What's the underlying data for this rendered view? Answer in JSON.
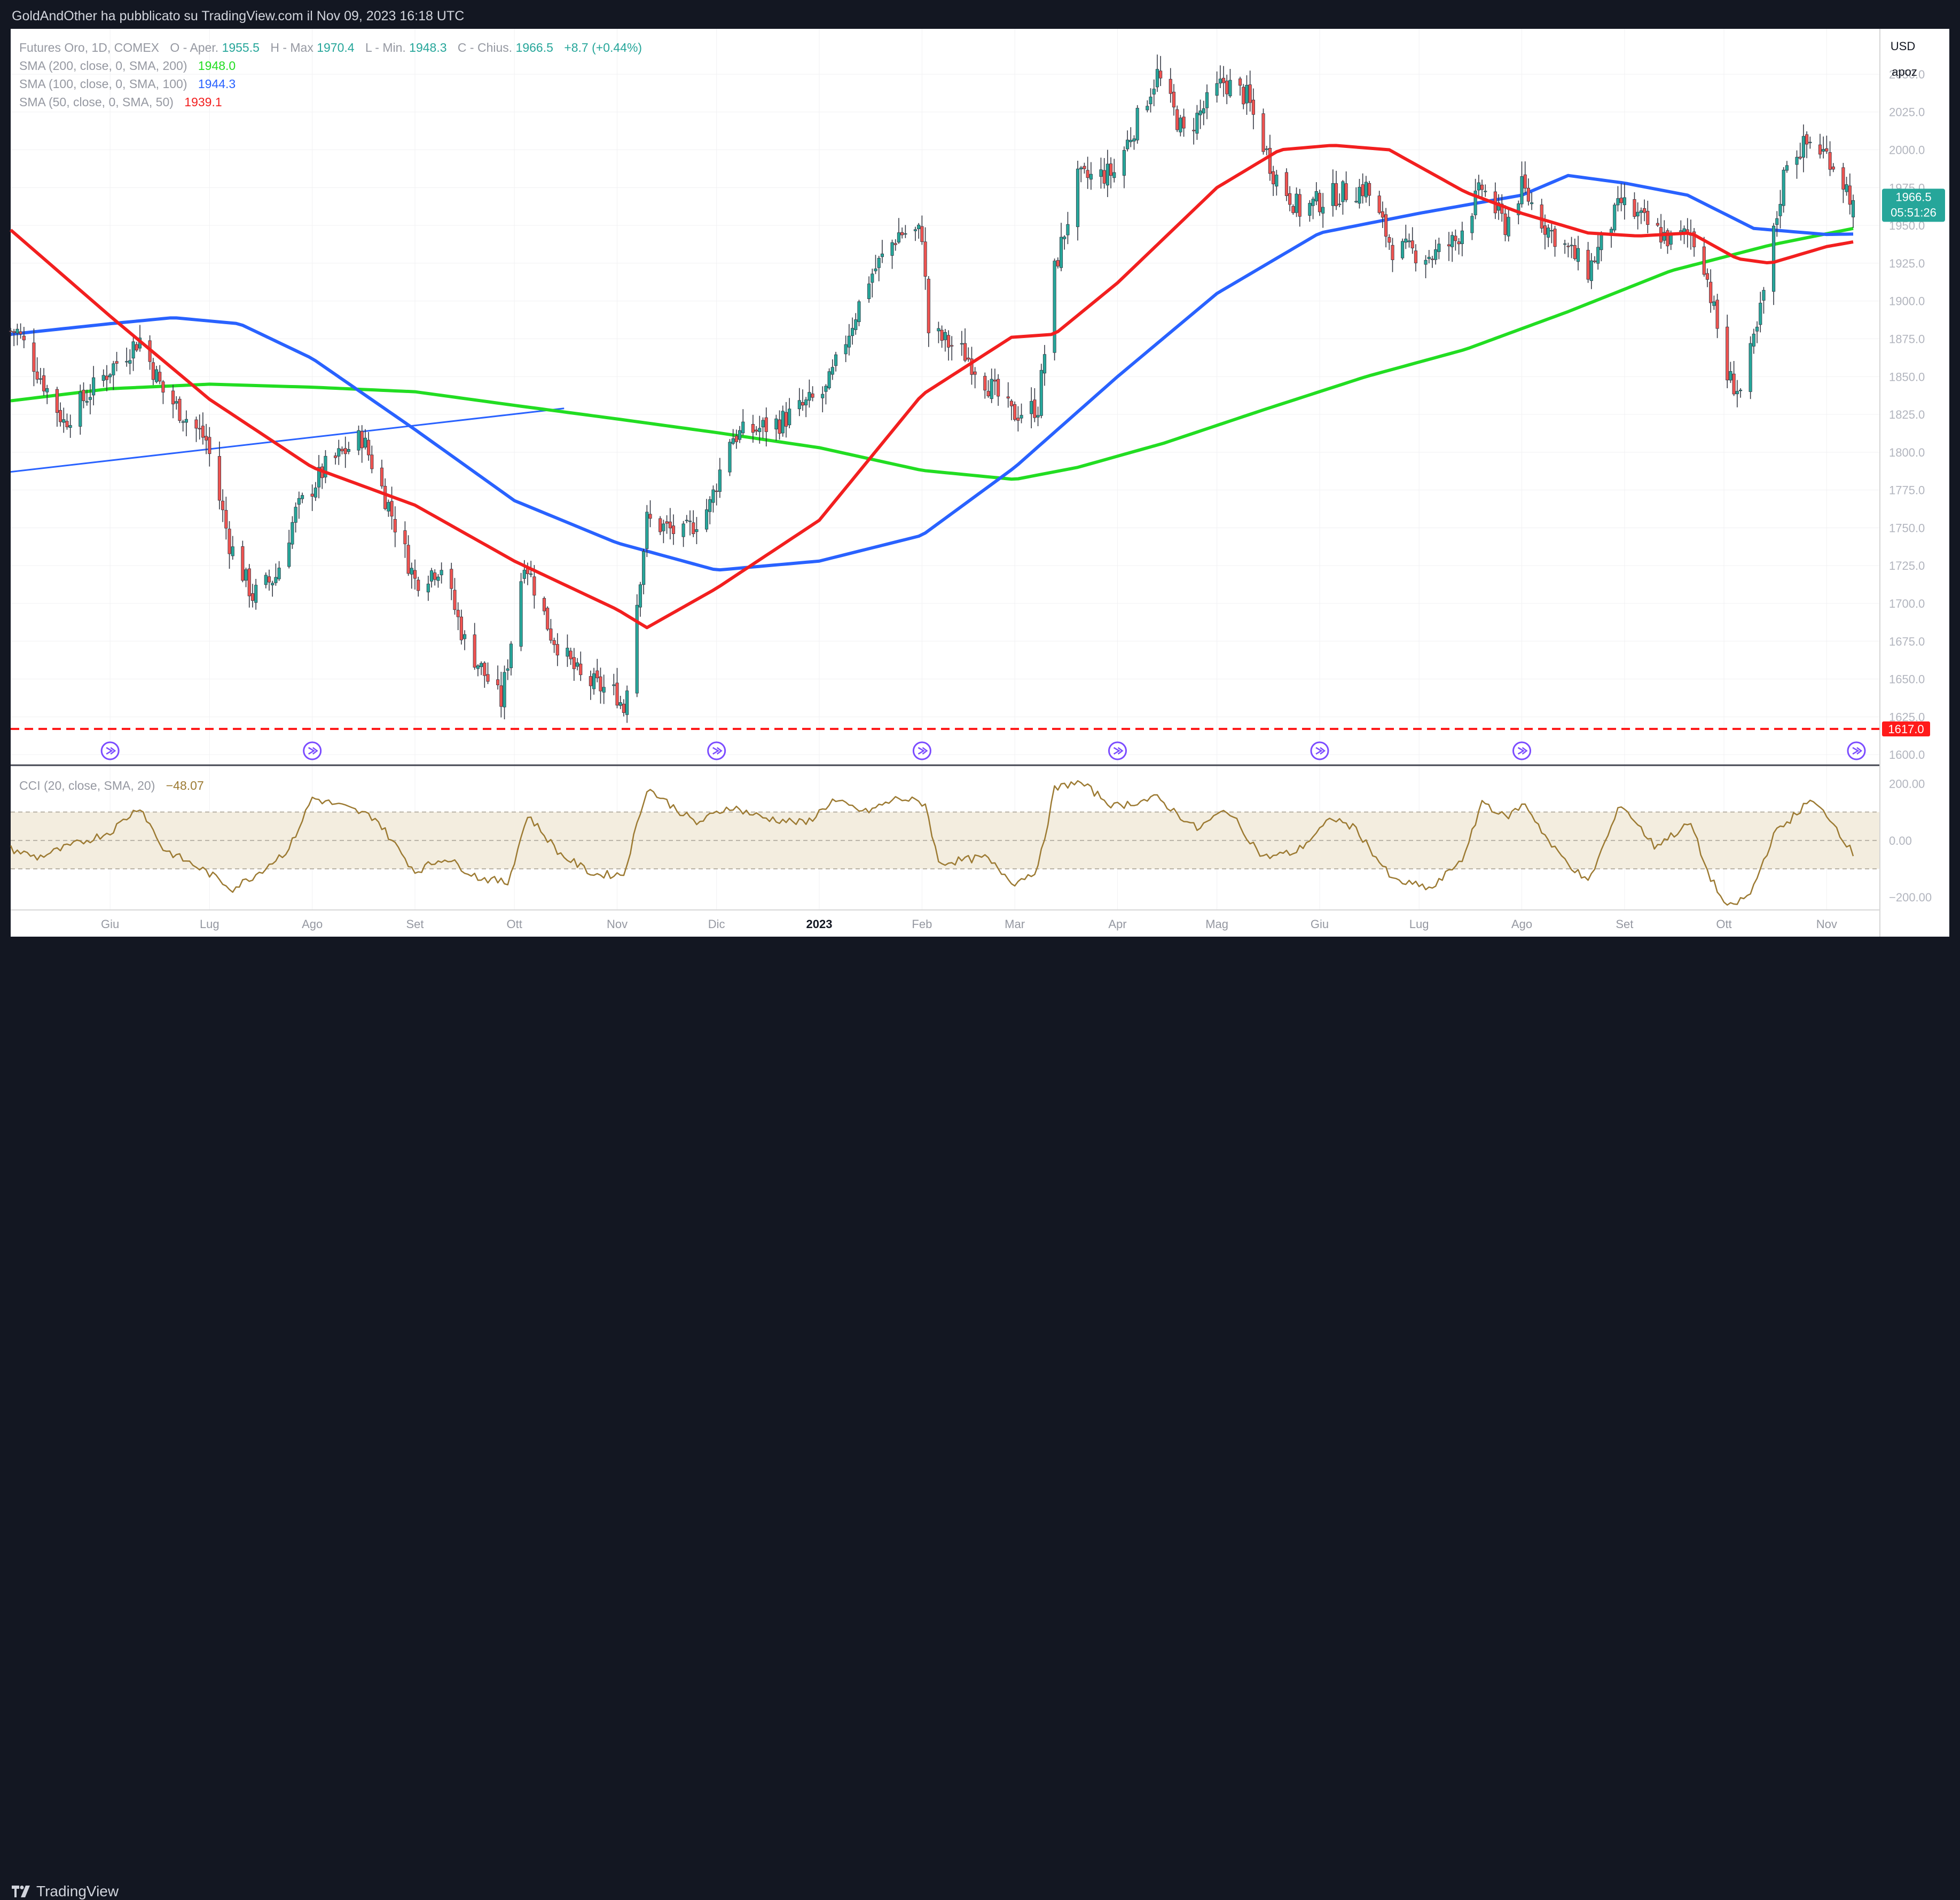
{
  "header": {
    "published_text": "GoldAndOther ha pubblicato su TradingView.com il Nov 09, 2023 16:18 UTC"
  },
  "footer": {
    "brand": "TradingView"
  },
  "legend": {
    "instrument": "Futures Oro, 1D, COMEX",
    "o_label": "O - Aper.",
    "o_value": "1955.5",
    "h_label": "H - Max",
    "h_value": "1970.4",
    "l_label": "L - Min.",
    "l_value": "1948.3",
    "c_label": "C - Chius.",
    "c_value": "1966.5",
    "change": "+8.7 (+0.44%)",
    "sma200_label": "SMA (200, close, 0, SMA, 200)",
    "sma200_value": "1948.0",
    "sma100_label": "SMA (100, close, 0, SMA, 100)",
    "sma100_value": "1944.3",
    "sma50_label": "SMA (50, close, 0, SMA, 50)",
    "sma50_value": "1939.1",
    "cci_label": "CCI (20, close, SMA, 20)",
    "cci_value": "−48.07"
  },
  "scale": {
    "currency": "USD",
    "mode": "apoz"
  },
  "price_badge": {
    "price": "1966.5",
    "countdown": "05:51:26"
  },
  "support_badge": "1617.0",
  "colors": {
    "up": "#26a69a",
    "down": "#ef5350",
    "sma200": "#22dd22",
    "sma100": "#2962ff",
    "sma50": "#f21f1f",
    "cci_line": "#9c7a32",
    "cci_band": "#f3eddf",
    "trendline": "#2962ff",
    "support": "#ff1a1a",
    "event_icon": "#7b4cff"
  },
  "chart_data": [
    {
      "type": "candlestick",
      "title": "Futures Oro, 1D, COMEX",
      "ylabel": "USD",
      "ylim": [
        1593,
        2080
      ],
      "y_ticks": [
        1600,
        1625,
        1650,
        1675,
        1700,
        1725,
        1750,
        1775,
        1800,
        1825,
        1850,
        1875,
        1900,
        1925,
        1950,
        1975,
        2000,
        2025,
        2050
      ],
      "y_tick_labels": [
        "1600.0",
        "1625.0",
        "1650.0",
        "1675.0",
        "1700.0",
        "1725.0",
        "1750.0",
        "1775.0",
        "1800.0",
        "1825.0",
        "1850.0",
        "1875.0",
        "1900.0",
        "1925.0",
        "1950.0",
        "1975.0",
        "2000.0",
        "2025.0",
        "2050.0"
      ],
      "x_ticks": [
        "2022-06-01",
        "2022-07-01",
        "2022-08-01",
        "2022-09-01",
        "2022-10-01",
        "2022-11-01",
        "2022-12-01",
        "2023-01-01",
        "2023-02-01",
        "2023-03-01",
        "2023-04-01",
        "2023-05-01",
        "2023-06-01",
        "2023-07-01",
        "2023-08-01",
        "2023-09-01",
        "2023-10-01",
        "2023-11-01"
      ],
      "x_tick_labels": [
        "Giu",
        "Lug",
        "Ago",
        "Set",
        "Ott",
        "Nov",
        "Dic",
        "2023",
        "Feb",
        "Mar",
        "Apr",
        "Mag",
        "Giu",
        "Lug",
        "Ago",
        "Set",
        "Ott",
        "Nov"
      ],
      "x_range": [
        "2022-05-02",
        "2023-11-09"
      ],
      "close_anchors": [
        [
          "2022-05-04",
          1880
        ],
        [
          "2022-05-18",
          1820
        ],
        [
          "2022-06-01",
          1855
        ],
        [
          "2022-06-10",
          1875
        ],
        [
          "2022-06-17",
          1840
        ],
        [
          "2022-06-30",
          1808
        ],
        [
          "2022-07-07",
          1740
        ],
        [
          "2022-07-14",
          1705
        ],
        [
          "2022-07-21",
          1718
        ],
        [
          "2022-07-27",
          1760
        ],
        [
          "2022-08-05",
          1790
        ],
        [
          "2022-08-16",
          1810
        ],
        [
          "2022-08-24",
          1765
        ],
        [
          "2022-09-01",
          1715
        ],
        [
          "2022-09-09",
          1725
        ],
        [
          "2022-09-16",
          1675
        ],
        [
          "2022-09-27",
          1635
        ],
        [
          "2022-10-04",
          1730
        ],
        [
          "2022-10-12",
          1680
        ],
        [
          "2022-10-21",
          1650
        ],
        [
          "2022-11-01",
          1640
        ],
        [
          "2022-11-03",
          1630
        ],
        [
          "2022-11-10",
          1755
        ],
        [
          "2022-11-21",
          1745
        ],
        [
          "2022-11-29",
          1765
        ],
        [
          "2022-12-05",
          1810
        ],
        [
          "2022-12-13",
          1815
        ],
        [
          "2022-12-20",
          1820
        ],
        [
          "2023-01-03",
          1840
        ],
        [
          "2023-01-16",
          1915
        ],
        [
          "2023-01-25",
          1945
        ],
        [
          "2023-02-01",
          1945
        ],
        [
          "2023-02-03",
          1880
        ],
        [
          "2023-02-14",
          1865
        ],
        [
          "2023-02-28",
          1825
        ],
        [
          "2023-03-08",
          1830
        ],
        [
          "2023-03-13",
          1920
        ],
        [
          "2023-03-20",
          1980
        ],
        [
          "2023-03-31",
          1985
        ],
        [
          "2023-04-13",
          2050
        ],
        [
          "2023-04-21",
          2010
        ],
        [
          "2023-05-03",
          2045
        ],
        [
          "2023-05-10",
          2035
        ],
        [
          "2023-05-18",
          1985
        ],
        [
          "2023-05-26",
          1960
        ],
        [
          "2023-06-05",
          1970
        ],
        [
          "2023-06-15",
          1975
        ],
        [
          "2023-06-23",
          1935
        ],
        [
          "2023-07-05",
          1930
        ],
        [
          "2023-07-12",
          1940
        ],
        [
          "2023-07-20",
          1975
        ],
        [
          "2023-07-27",
          1950
        ],
        [
          "2023-08-01",
          1975
        ],
        [
          "2023-08-08",
          1950
        ],
        [
          "2023-08-21",
          1920
        ],
        [
          "2023-08-31",
          1965
        ],
        [
          "2023-09-08",
          1950
        ],
        [
          "2023-09-15",
          1940
        ],
        [
          "2023-09-21",
          1945
        ],
        [
          "2023-09-25",
          1925
        ],
        [
          "2023-10-02",
          1850
        ],
        [
          "2023-10-06",
          1840
        ],
        [
          "2023-10-11",
          1880
        ],
        [
          "2023-10-20",
          1995
        ],
        [
          "2023-10-27",
          2005
        ],
        [
          "2023-11-02",
          1995
        ],
        [
          "2023-11-09",
          1966.5
        ]
      ],
      "sma50": [
        [
          "2022-05-02",
          1947
        ],
        [
          "2022-06-01",
          1890
        ],
        [
          "2022-07-01",
          1835
        ],
        [
          "2022-08-01",
          1790
        ],
        [
          "2022-09-01",
          1765
        ],
        [
          "2022-10-01",
          1728
        ],
        [
          "2022-11-01",
          1696
        ],
        [
          "2022-11-10",
          1684
        ],
        [
          "2022-12-01",
          1710
        ],
        [
          "2023-01-01",
          1755
        ],
        [
          "2023-02-01",
          1838
        ],
        [
          "2023-02-28",
          1876
        ],
        [
          "2023-03-13",
          1878
        ],
        [
          "2023-04-01",
          1912
        ],
        [
          "2023-05-01",
          1975
        ],
        [
          "2023-05-20",
          2000
        ],
        [
          "2023-06-05",
          2003
        ],
        [
          "2023-06-22",
          2000
        ],
        [
          "2023-07-15",
          1972
        ],
        [
          "2023-08-01",
          1958
        ],
        [
          "2023-08-21",
          1945
        ],
        [
          "2023-09-05",
          1943
        ],
        [
          "2023-09-21",
          1945
        ],
        [
          "2023-10-05",
          1928
        ],
        [
          "2023-10-15",
          1925
        ],
        [
          "2023-11-01",
          1936
        ],
        [
          "2023-11-09",
          1939.1
        ]
      ],
      "sma100": [
        [
          "2022-05-02",
          1878
        ],
        [
          "2022-06-01",
          1885
        ],
        [
          "2022-06-20",
          1889
        ],
        [
          "2022-07-10",
          1885
        ],
        [
          "2022-08-01",
          1862
        ],
        [
          "2022-09-01",
          1815
        ],
        [
          "2022-10-01",
          1768
        ],
        [
          "2022-11-01",
          1740
        ],
        [
          "2022-12-01",
          1722
        ],
        [
          "2023-01-01",
          1728
        ],
        [
          "2023-02-01",
          1745
        ],
        [
          "2023-03-01",
          1790
        ],
        [
          "2023-04-01",
          1850
        ],
        [
          "2023-05-01",
          1905
        ],
        [
          "2023-06-01",
          1945
        ],
        [
          "2023-07-01",
          1958
        ],
        [
          "2023-08-01",
          1970
        ],
        [
          "2023-08-15",
          1983
        ],
        [
          "2023-09-01",
          1978
        ],
        [
          "2023-09-20",
          1970
        ],
        [
          "2023-10-10",
          1948
        ],
        [
          "2023-11-01",
          1944
        ],
        [
          "2023-11-09",
          1944.3
        ]
      ],
      "sma200": [
        [
          "2022-05-02",
          1834
        ],
        [
          "2022-06-01",
          1842
        ],
        [
          "2022-07-01",
          1845
        ],
        [
          "2022-08-01",
          1843
        ],
        [
          "2022-09-01",
          1840
        ],
        [
          "2022-10-01",
          1831
        ],
        [
          "2022-11-01",
          1822
        ],
        [
          "2022-12-01",
          1813
        ],
        [
          "2023-01-01",
          1803
        ],
        [
          "2023-02-01",
          1788
        ],
        [
          "2023-03-01",
          1782
        ],
        [
          "2023-03-20",
          1790
        ],
        [
          "2023-04-15",
          1806
        ],
        [
          "2023-05-15",
          1828
        ],
        [
          "2023-06-15",
          1850
        ],
        [
          "2023-07-15",
          1868
        ],
        [
          "2023-08-15",
          1893
        ],
        [
          "2023-09-15",
          1920
        ],
        [
          "2023-10-15",
          1937
        ],
        [
          "2023-11-09",
          1948.0
        ]
      ],
      "trendline": [
        [
          "2022-05-02",
          1787
        ],
        [
          "2022-10-16",
          1829
        ]
      ],
      "support_level": 1617.0,
      "event_icons": [
        "2022-06-01",
        "2022-08-01",
        "2022-12-01",
        "2023-02-01",
        "2023-04-01",
        "2023-06-01",
        "2023-08-01",
        "2023-11-09"
      ]
    },
    {
      "type": "line",
      "title": "CCI (20, close, SMA, 20)",
      "ylim": [
        -245,
        265
      ],
      "y_ticks": [
        200,
        0,
        -200
      ],
      "y_tick_labels": [
        "200.00",
        "0.00",
        "−200.00"
      ],
      "band": [
        -100,
        100
      ],
      "points": [
        [
          "2022-05-02",
          -30
        ],
        [
          "2022-05-10",
          -60
        ],
        [
          "2022-05-20",
          -20
        ],
        [
          "2022-06-01",
          30
        ],
        [
          "2022-06-10",
          120
        ],
        [
          "2022-06-17",
          -30
        ],
        [
          "2022-06-30",
          -110
        ],
        [
          "2022-07-08",
          -170
        ],
        [
          "2022-07-15",
          -120
        ],
        [
          "2022-07-25",
          -30
        ],
        [
          "2022-08-01",
          150
        ],
        [
          "2022-08-10",
          120
        ],
        [
          "2022-08-20",
          80
        ],
        [
          "2022-09-01",
          -110
        ],
        [
          "2022-09-10",
          -60
        ],
        [
          "2022-09-20",
          -130
        ],
        [
          "2022-09-29",
          -150
        ],
        [
          "2022-10-05",
          90
        ],
        [
          "2022-10-15",
          -50
        ],
        [
          "2022-10-25",
          -120
        ],
        [
          "2022-11-03",
          -120
        ],
        [
          "2022-11-10",
          185
        ],
        [
          "2022-11-25",
          60
        ],
        [
          "2022-12-05",
          120
        ],
        [
          "2022-12-15",
          80
        ],
        [
          "2022-12-28",
          60
        ],
        [
          "2023-01-05",
          140
        ],
        [
          "2023-01-15",
          100
        ],
        [
          "2023-01-25",
          150
        ],
        [
          "2023-02-02",
          130
        ],
        [
          "2023-02-06",
          -80
        ],
        [
          "2023-02-20",
          -60
        ],
        [
          "2023-03-01",
          -150
        ],
        [
          "2023-03-08",
          -100
        ],
        [
          "2023-03-13",
          180
        ],
        [
          "2023-03-20",
          210
        ],
        [
          "2023-03-31",
          120
        ],
        [
          "2023-04-13",
          150
        ],
        [
          "2023-04-25",
          40
        ],
        [
          "2023-05-04",
          110
        ],
        [
          "2023-05-15",
          -60
        ],
        [
          "2023-05-25",
          -40
        ],
        [
          "2023-06-05",
          80
        ],
        [
          "2023-06-12",
          40
        ],
        [
          "2023-06-23",
          -140
        ],
        [
          "2023-07-05",
          -170
        ],
        [
          "2023-07-15",
          -50
        ],
        [
          "2023-07-20",
          140
        ],
        [
          "2023-07-27",
          80
        ],
        [
          "2023-08-02",
          130
        ],
        [
          "2023-08-10",
          -20
        ],
        [
          "2023-08-21",
          -150
        ],
        [
          "2023-08-31",
          130
        ],
        [
          "2023-09-10",
          -20
        ],
        [
          "2023-09-21",
          60
        ],
        [
          "2023-09-26",
          -110
        ],
        [
          "2023-10-02",
          -240
        ],
        [
          "2023-10-09",
          -190
        ],
        [
          "2023-10-16",
          20
        ],
        [
          "2023-10-27",
          140
        ],
        [
          "2023-11-02",
          80
        ],
        [
          "2023-11-09",
          -48.07
        ]
      ]
    }
  ]
}
